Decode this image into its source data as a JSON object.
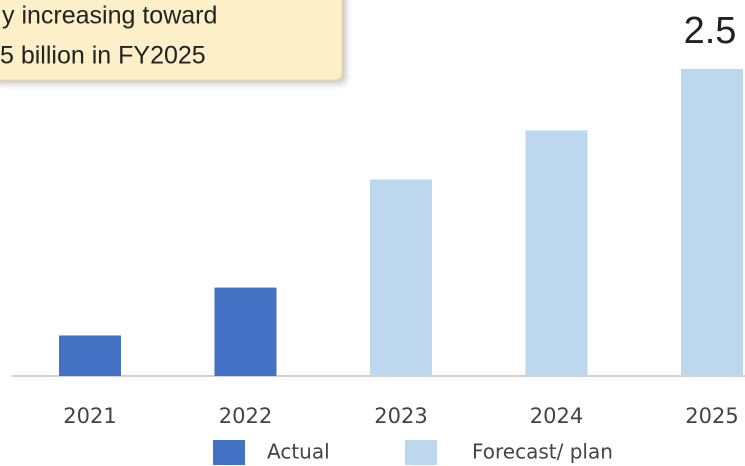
{
  "chart_data": {
    "type": "bar",
    "annotation": [
      "y increasing toward",
      "5 billion in FY2025"
    ],
    "categories": [
      "2021",
      "2022",
      "2023",
      "2024",
      "2025"
    ],
    "series": [
      {
        "name": "Actual",
        "color": "#4472c4",
        "values": [
          0.33,
          0.72,
          null,
          null,
          null
        ]
      },
      {
        "name": "Forecast/ plan",
        "color": "#bdd7ee",
        "values": [
          null,
          null,
          1.6,
          2.0,
          2.5
        ],
        "value_labels": [
          null,
          null,
          null,
          null,
          "2.5"
        ]
      }
    ],
    "ylim": [
      0,
      2.5
    ]
  }
}
